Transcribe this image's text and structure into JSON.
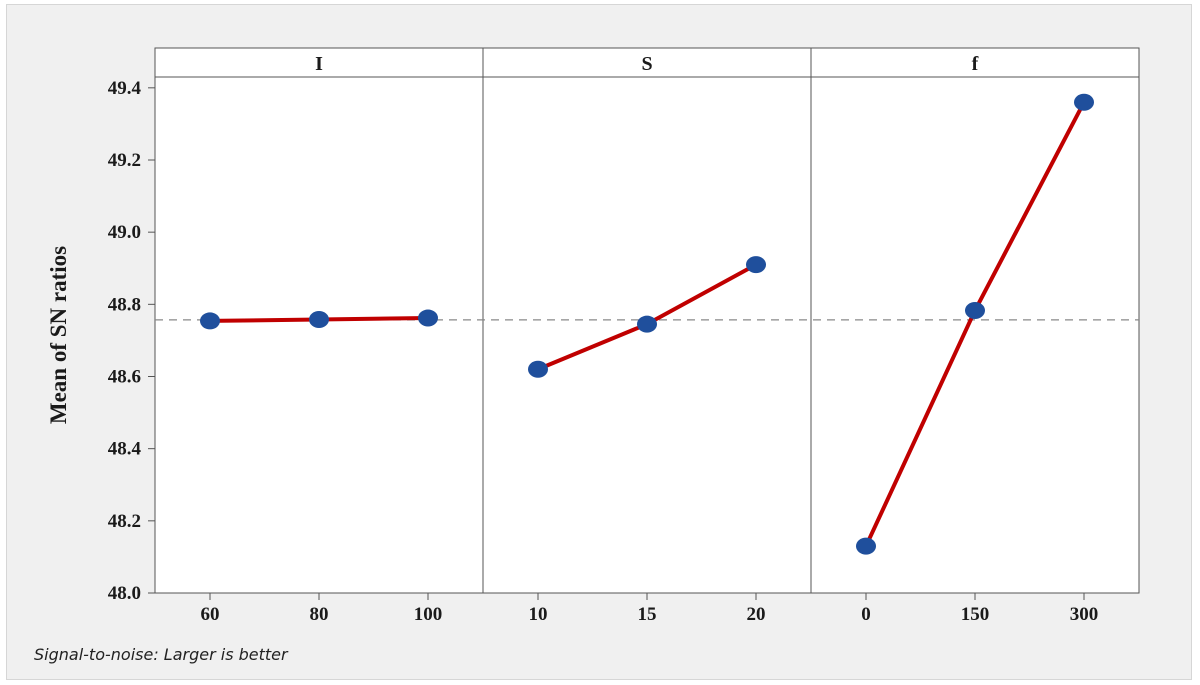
{
  "chart_data": {
    "type": "line",
    "ylabel": "Mean of SN ratios",
    "ylim": [
      48.0,
      49.43
    ],
    "yticks": [
      48.0,
      48.2,
      48.4,
      48.6,
      48.8,
      49.0,
      49.2,
      49.4
    ],
    "reference_line": 48.757,
    "grid": false,
    "panels": [
      {
        "title": "I",
        "categories": [
          "60",
          "80",
          "100"
        ],
        "values": [
          48.754,
          48.758,
          48.762
        ]
      },
      {
        "title": "S",
        "categories": [
          "10",
          "15",
          "20"
        ],
        "values": [
          48.62,
          48.745,
          48.91
        ]
      },
      {
        "title": "f",
        "categories": [
          "0",
          "150",
          "300"
        ],
        "values": [
          48.13,
          48.783,
          49.36
        ]
      }
    ],
    "line_color": "#c00000",
    "marker_color": "#1f4f9c",
    "reference_color": "#888888"
  },
  "footnote": "Signal-to-noise: Larger is better"
}
